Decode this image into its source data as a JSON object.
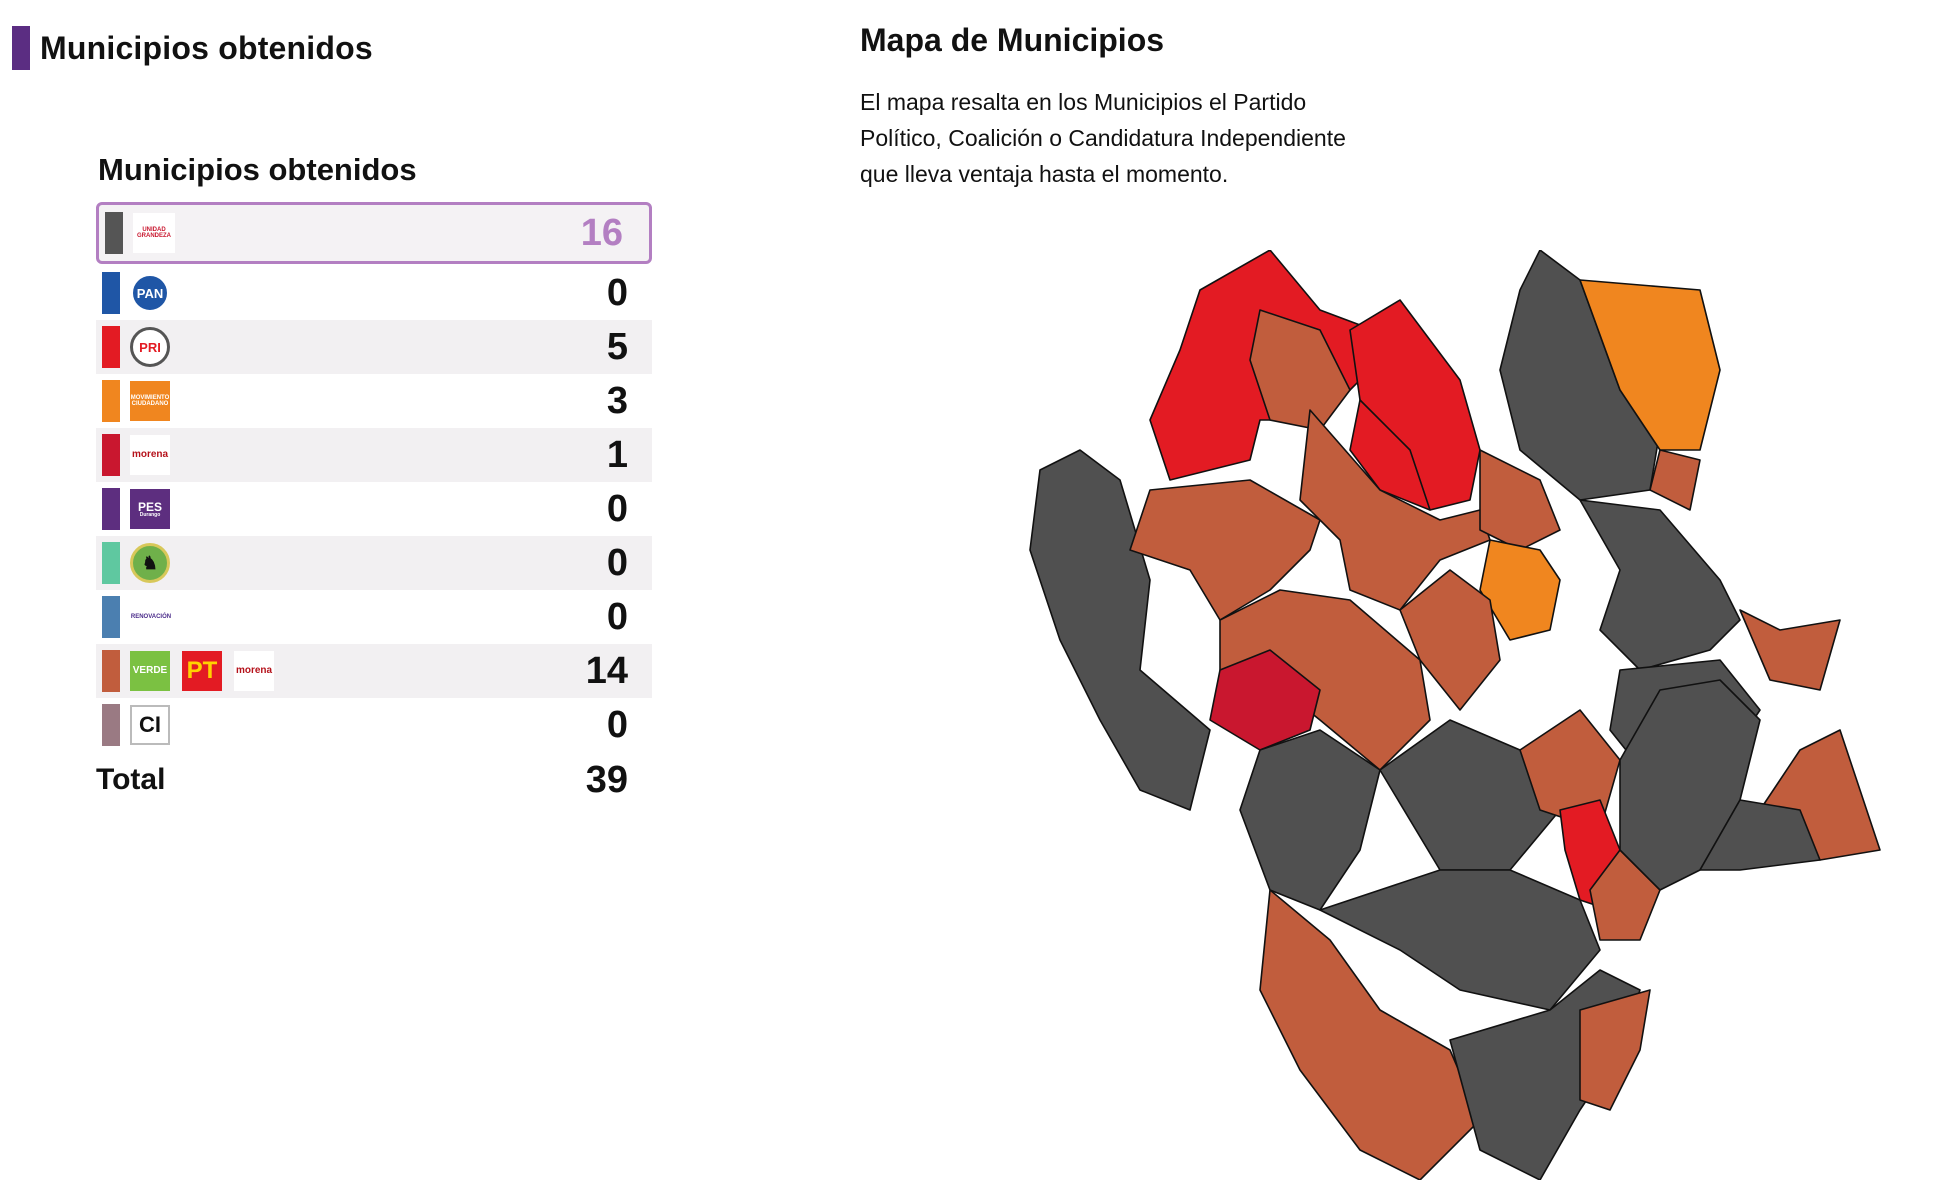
{
  "section": {
    "title": "Municipios obtenidos"
  },
  "table": {
    "title": "Municipios obtenidos",
    "rows": [
      {
        "swatch": "#555555",
        "logos": [
          {
            "icon": "unidad-grandeza-logo",
            "text": "UNIDAD GRANDEZA"
          }
        ],
        "count": "16",
        "highlight": true
      },
      {
        "swatch": "#1f56a6",
        "logos": [
          {
            "icon": "pan-logo",
            "text": "PAN"
          }
        ],
        "count": "0"
      },
      {
        "swatch": "#e31b23",
        "logos": [
          {
            "icon": "pri-logo",
            "text": "PRI"
          }
        ],
        "count": "5"
      },
      {
        "swatch": "#f0861f",
        "logos": [
          {
            "icon": "movimiento-ciudadano-logo",
            "text": "MOVIMIENTO CIUDADANO"
          }
        ],
        "count": "3"
      },
      {
        "swatch": "#c9172f",
        "logos": [
          {
            "icon": "morena-logo",
            "text": "morena"
          }
        ],
        "count": "1"
      },
      {
        "swatch": "#5d2e7f",
        "logos": [
          {
            "icon": "pes-logo",
            "text": "PES",
            "sub": "Durango"
          }
        ],
        "count": "0"
      },
      {
        "swatch": "#5fc8a0",
        "logos": [
          {
            "icon": "horse-logo",
            "text": ""
          }
        ],
        "count": "0"
      },
      {
        "swatch": "#4b7fb0",
        "logos": [
          {
            "icon": "renovacion-logo",
            "text": "RENOVACIÓN"
          }
        ],
        "count": "0"
      },
      {
        "swatch": "#c15d3d",
        "logos": [
          {
            "icon": "verde-logo",
            "text": "VERDE"
          },
          {
            "icon": "pt-logo",
            "text": "PT"
          },
          {
            "icon": "morena-logo",
            "text": "morena"
          }
        ],
        "count": "14"
      },
      {
        "swatch": "#9a7a83",
        "logos": [
          {
            "icon": "ci-logo",
            "text": "CI"
          }
        ],
        "count": "0"
      }
    ],
    "total_label": "Total",
    "total_value": "39"
  },
  "map": {
    "title": "Mapa de Municipios",
    "description": "El mapa resalta en los Municipios el Partido Político, Coalición o Candidatura Independiente que lleva ventaja hasta el momento.",
    "colors": {
      "gray": "#505050",
      "red": "#e31b23",
      "orange": "#f0861f",
      "brick": "#c15d3d",
      "crimson": "#c9172f"
    }
  }
}
